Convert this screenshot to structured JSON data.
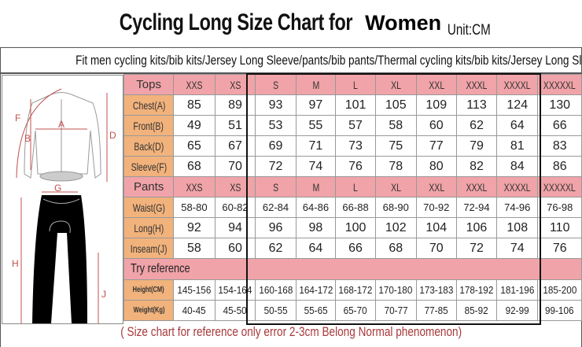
{
  "title": {
    "main": "Cycling Long Size Chart for",
    "gender": "Women",
    "unit": "Unit:CM"
  },
  "fit_text": "Fit men cycling kits/bib kits/Jersey Long Sleeve/pants/bib pants/Thermal cycling kits/bib kits/Jersey Long Sleeve/pants/bib pants",
  "figure_labels": {
    "a": "A",
    "b": "B",
    "d": "D",
    "f": "F",
    "g": "G",
    "h": "H",
    "j": "J"
  },
  "sizes": [
    "XXS",
    "XS",
    "S",
    "M",
    "L",
    "XL",
    "XXL",
    "XXXL",
    "XXXXL",
    "XXXXXL"
  ],
  "tops": {
    "header": "Tops",
    "rows": [
      {
        "label": "Chest(A)",
        "values": [
          "85",
          "89",
          "93",
          "97",
          "101",
          "105",
          "109",
          "113",
          "124",
          "130"
        ]
      },
      {
        "label": "Front(B)",
        "values": [
          "49",
          "51",
          "53",
          "55",
          "57",
          "58",
          "60",
          "62",
          "64",
          "66"
        ]
      },
      {
        "label": "Back(D)",
        "values": [
          "65",
          "67",
          "69",
          "71",
          "73",
          "75",
          "77",
          "79",
          "81",
          "83"
        ]
      },
      {
        "label": "Sleeve(F)",
        "values": [
          "68",
          "70",
          "72",
          "74",
          "76",
          "78",
          "80",
          "82",
          "84",
          "86"
        ]
      }
    ]
  },
  "pants": {
    "header": "Pants",
    "rows": [
      {
        "label": "Waist(G)",
        "values": [
          "58-80",
          "60-82",
          "62-84",
          "64-86",
          "66-88",
          "68-90",
          "70-92",
          "72-94",
          "74-96",
          "76-98"
        ]
      },
      {
        "label": "Long(H)",
        "values": [
          "92",
          "94",
          "96",
          "98",
          "100",
          "102",
          "104",
          "106",
          "108",
          "110"
        ]
      },
      {
        "label": "Inseam(J)",
        "values": [
          "58",
          "60",
          "62",
          "64",
          "66",
          "68",
          "70",
          "72",
          "74",
          "76"
        ]
      }
    ]
  },
  "reference": {
    "header": "Try reference",
    "rows": [
      {
        "label": "Height(CM)",
        "values": [
          "145-156",
          "154-164",
          "160-168",
          "164-172",
          "168-172",
          "170-180",
          "173-183",
          "178-192",
          "181-196",
          "185-200"
        ]
      },
      {
        "label": "Weight(Kg)",
        "values": [
          "40-45",
          "45-50",
          "50-55",
          "55-65",
          "65-70",
          "70-77",
          "77-85",
          "85-92",
          "92-99",
          "99-106"
        ]
      }
    ]
  },
  "footer": "( Size chart for reference only  error 2-3cm  Belong Normal phenomenon)",
  "colors": {
    "header_pink": "#f0a3a8",
    "label_orange": "#f1b27c",
    "footer_red": "#a8383a",
    "measure_line": "#c0504d"
  }
}
